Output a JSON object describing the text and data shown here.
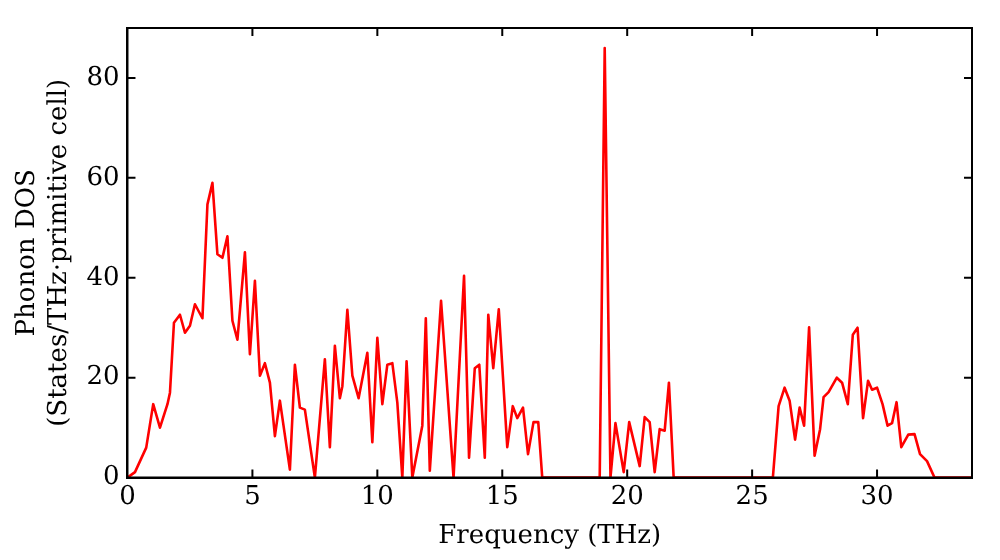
{
  "chart_data": {
    "type": "line",
    "xlabel": "Frequency (THz)",
    "ylabel": "Phonon DOS\n(States/THz·primitive cell)",
    "xlim": [
      0,
      33.8
    ],
    "ylim": [
      0,
      90
    ],
    "xticks": [
      0,
      5,
      10,
      15,
      20,
      25,
      30
    ],
    "yticks": [
      0,
      20,
      40,
      60,
      80
    ],
    "grid": false,
    "legend": false,
    "marker": "none",
    "line_style": "solid",
    "series": [
      {
        "color": "#ff0000",
        "x": [
          0,
          0.3,
          0.75,
          1.03,
          1.3,
          1.6,
          1.7,
          1.86,
          2.1,
          2.3,
          2.5,
          2.7,
          3.0,
          3.2,
          3.4,
          3.6,
          3.8,
          4.0,
          4.2,
          4.4,
          4.7,
          4.9,
          5.1,
          5.3,
          5.5,
          5.7,
          5.9,
          6.1,
          6.5,
          6.7,
          6.9,
          7.1,
          7.5,
          7.9,
          8.1,
          8.3,
          8.5,
          8.6,
          8.8,
          9.0,
          9.25,
          9.6,
          9.8,
          10.0,
          10.2,
          10.4,
          10.6,
          10.8,
          11.0,
          11.17,
          11.4,
          11.8,
          11.94,
          12.1,
          12.55,
          13.05,
          13.47,
          13.67,
          13.9,
          14.08,
          14.3,
          14.44,
          14.64,
          14.86,
          15.2,
          15.42,
          15.6,
          15.83,
          16.03,
          16.25,
          16.44,
          16.6,
          18.9,
          19.1,
          19.33,
          19.53,
          19.86,
          20.08,
          20.5,
          20.7,
          20.9,
          21.1,
          21.3,
          21.5,
          21.67,
          21.86,
          25.83,
          26.06,
          26.3,
          26.5,
          26.72,
          26.9,
          27.08,
          27.28,
          27.5,
          27.72,
          27.86,
          28.06,
          28.39,
          28.6,
          28.83,
          29.03,
          29.22,
          29.44,
          29.64,
          29.8,
          30.0,
          30.22,
          30.42,
          30.6,
          30.78,
          30.97,
          31.25,
          31.5,
          31.72,
          32.0,
          32.3,
          33.8
        ],
        "values": [
          0,
          1.1,
          6,
          14.7,
          10,
          14.7,
          17,
          31,
          32.6,
          29,
          30.4,
          34.7,
          31.9,
          54.7,
          59,
          44.7,
          44,
          48.3,
          31.4,
          27.6,
          45.1,
          24.7,
          39.4,
          20.4,
          22.9,
          19,
          8.3,
          15.4,
          1.6,
          22.6,
          14,
          13.6,
          0,
          23.7,
          6.1,
          26.4,
          15.9,
          18.3,
          33.6,
          20.4,
          15.9,
          25,
          7.1,
          28,
          14.7,
          22.6,
          22.9,
          15,
          0,
          23.3,
          0,
          10.4,
          31.9,
          1.4,
          35.4,
          0,
          40.4,
          4,
          21.9,
          22.6,
          4,
          32.6,
          21.9,
          33.7,
          6.1,
          14.3,
          11.9,
          14,
          4.7,
          11.1,
          11.1,
          0,
          0,
          86,
          0,
          10.9,
          1.1,
          11.1,
          2.3,
          12.1,
          11.1,
          1.1,
          9.7,
          9.4,
          19,
          0,
          0,
          14.3,
          18,
          15.4,
          7.6,
          14,
          10.4,
          30.1,
          4.4,
          9.7,
          16.1,
          17.1,
          20,
          19,
          14.7,
          28.6,
          30,
          11.9,
          19.4,
          17.6,
          18,
          14.7,
          10.4,
          10.9,
          15.1,
          6.1,
          8.6,
          8.7,
          4.7,
          3.3,
          0,
          0
        ]
      }
    ]
  }
}
